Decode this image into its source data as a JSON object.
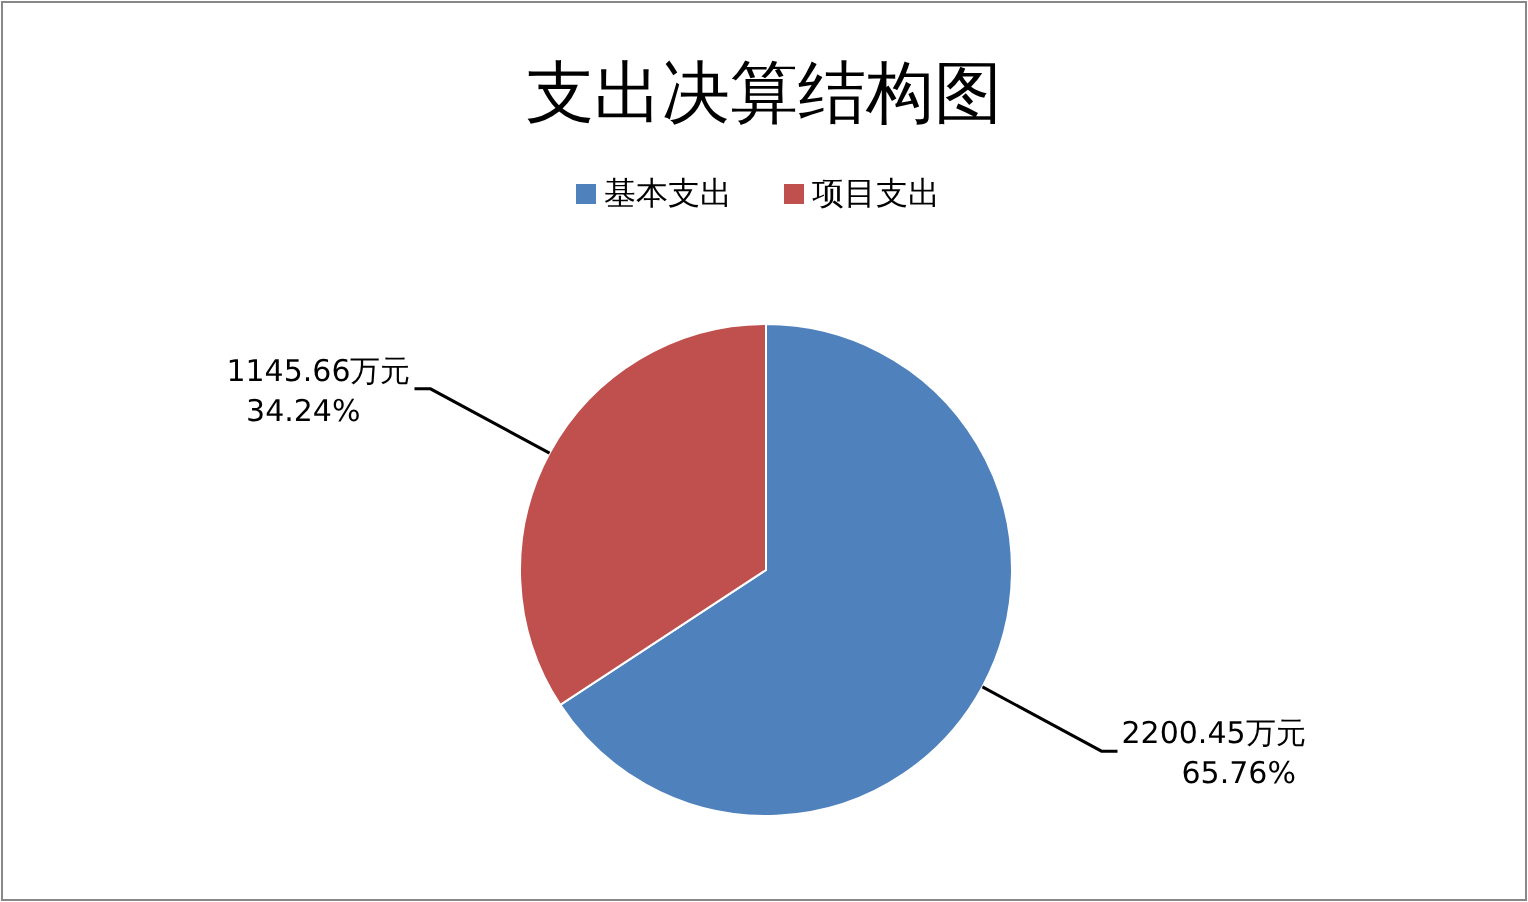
{
  "chart_data": {
    "type": "pie",
    "title": "支出决算结构图",
    "categories": [
      "基本支出",
      "项目支出"
    ],
    "values": [
      2200.45,
      1145.66
    ],
    "colors": [
      "#4f81bd",
      "#c0504d"
    ],
    "value_labels": [
      "2200.45万元\n65.76%",
      "1145.66万元\n34.24%"
    ],
    "legend": "top"
  }
}
